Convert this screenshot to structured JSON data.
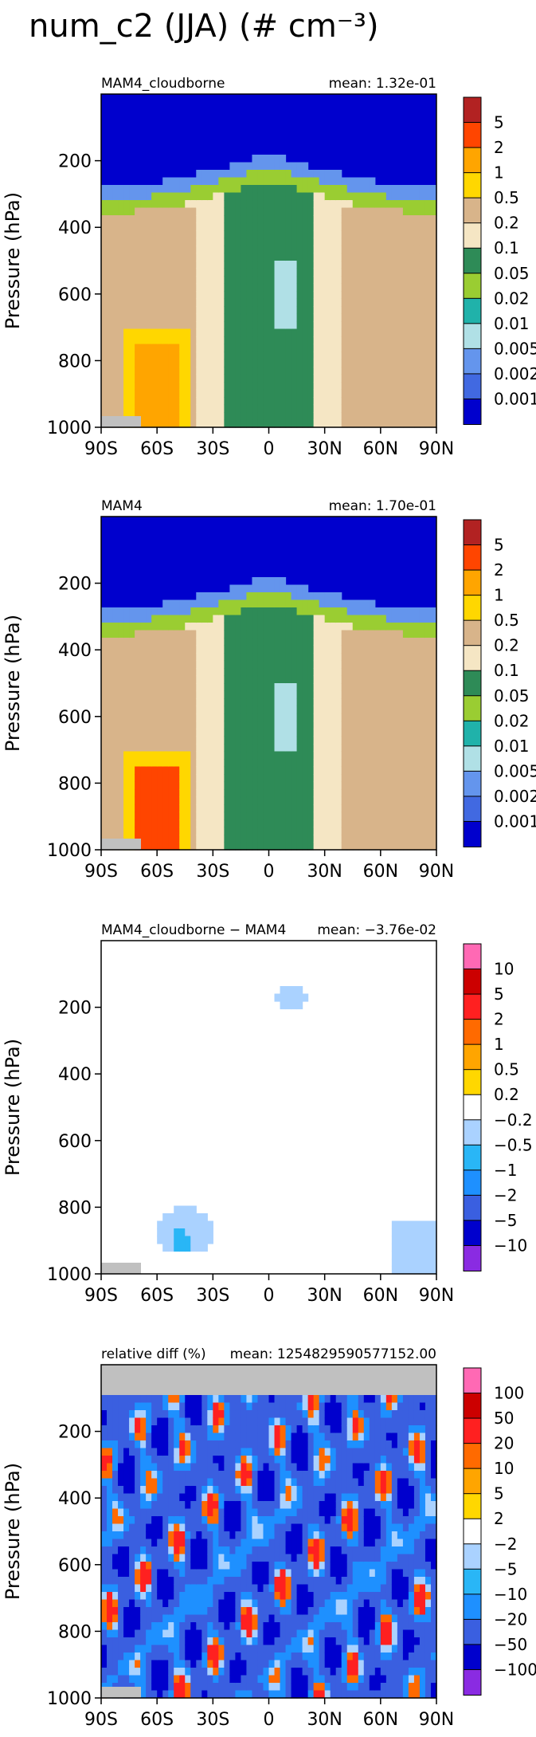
{
  "figure_title": "num_c2 (JJA) (# cm⁻³)",
  "chart_data": [
    {
      "type": "heatmap",
      "title_left": "MAM4_cloudborne",
      "title_right": "mean: 1.32e-01",
      "ylabel": "Pressure (hPa)",
      "x_ticks": [
        "90S",
        "60S",
        "30S",
        "0",
        "30N",
        "60N",
        "90N"
      ],
      "y_ticks": [
        "200",
        "400",
        "600",
        "800",
        "1000"
      ],
      "xlim": [
        -90,
        90
      ],
      "ylim": [
        1000,
        0
      ],
      "levels": [
        "5",
        "2",
        "1",
        "0.5",
        "0.2",
        "0.1",
        "0.05",
        "0.02",
        "0.01",
        "0.005",
        "0.002",
        "0.001"
      ],
      "colors": [
        "#b22222",
        "#ff4500",
        "#ffa500",
        "#ffd700",
        "#d8b48a",
        "#f5e6c4",
        "#2e8b57",
        "#9acd32",
        "#20b2aa",
        "#b0e0e6",
        "#6495ed",
        "#4169e1",
        "#0000cd"
      ]
    },
    {
      "type": "heatmap",
      "title_left": "MAM4",
      "title_right": "mean: 1.70e-01",
      "ylabel": "Pressure (hPa)",
      "x_ticks": [
        "90S",
        "60S",
        "30S",
        "0",
        "30N",
        "60N",
        "90N"
      ],
      "y_ticks": [
        "200",
        "400",
        "600",
        "800",
        "1000"
      ],
      "xlim": [
        -90,
        90
      ],
      "ylim": [
        1000,
        0
      ],
      "levels": [
        "5",
        "2",
        "1",
        "0.5",
        "0.2",
        "0.1",
        "0.05",
        "0.02",
        "0.01",
        "0.005",
        "0.002",
        "0.001"
      ],
      "colors": [
        "#b22222",
        "#ff4500",
        "#ffa500",
        "#ffd700",
        "#d8b48a",
        "#f5e6c4",
        "#2e8b57",
        "#9acd32",
        "#20b2aa",
        "#b0e0e6",
        "#6495ed",
        "#4169e1",
        "#0000cd"
      ]
    },
    {
      "type": "heatmap",
      "title_left": "MAM4_cloudborne − MAM4",
      "title_right": "mean: −3.76e-02",
      "ylabel": "Pressure (hPa)",
      "x_ticks": [
        "90S",
        "60S",
        "30S",
        "0",
        "30N",
        "60N",
        "90N"
      ],
      "y_ticks": [
        "200",
        "400",
        "600",
        "800",
        "1000"
      ],
      "xlim": [
        -90,
        90
      ],
      "ylim": [
        1000,
        0
      ],
      "levels": [
        "10",
        "5",
        "2",
        "1",
        "0.5",
        "0.2",
        "−0.2",
        "−0.5",
        "−1",
        "−2",
        "−5",
        "−10"
      ],
      "colors": [
        "#ff69b4",
        "#cc0000",
        "#ff2020",
        "#ff6a00",
        "#ffa500",
        "#ffd700",
        "#ffffff",
        "#aad2ff",
        "#29b6f6",
        "#1e90ff",
        "#3a5fe0",
        "#0000cd",
        "#8a2be2"
      ]
    },
    {
      "type": "heatmap",
      "title_left": "relative diff (%)",
      "title_right": "mean: 1254829590577152.00",
      "ylabel": "Pressure (hPa)",
      "x_ticks": [
        "90S",
        "60S",
        "30S",
        "0",
        "30N",
        "60N",
        "90N"
      ],
      "y_ticks": [
        "200",
        "400",
        "600",
        "800",
        "1000"
      ],
      "xlim": [
        -90,
        90
      ],
      "ylim": [
        1000,
        0
      ],
      "levels": [
        "100",
        "50",
        "20",
        "10",
        "5",
        "2",
        "−2",
        "−5",
        "−10",
        "−20",
        "−50",
        "−100"
      ],
      "colors": [
        "#ff69b4",
        "#cc0000",
        "#ff2020",
        "#ff6a00",
        "#ffa500",
        "#ffd700",
        "#ffffff",
        "#aad2ff",
        "#29b6f6",
        "#1e90ff",
        "#3a5fe0",
        "#0000cd",
        "#8a2be2"
      ]
    }
  ]
}
